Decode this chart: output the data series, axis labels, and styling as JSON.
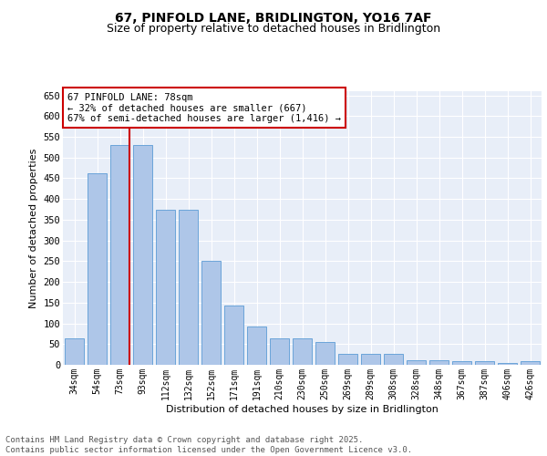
{
  "title_line1": "67, PINFOLD LANE, BRIDLINGTON, YO16 7AF",
  "title_line2": "Size of property relative to detached houses in Bridlington",
  "xlabel": "Distribution of detached houses by size in Bridlington",
  "ylabel": "Number of detached properties",
  "categories": [
    "34sqm",
    "54sqm",
    "73sqm",
    "93sqm",
    "112sqm",
    "132sqm",
    "152sqm",
    "171sqm",
    "191sqm",
    "210sqm",
    "230sqm",
    "250sqm",
    "269sqm",
    "289sqm",
    "308sqm",
    "328sqm",
    "348sqm",
    "367sqm",
    "387sqm",
    "406sqm",
    "426sqm"
  ],
  "values": [
    63,
    463,
    530,
    530,
    375,
    375,
    250,
    143,
    93,
    63,
    63,
    55,
    27,
    27,
    27,
    11,
    11,
    8,
    8,
    5,
    8
  ],
  "bar_color": "#aec6e8",
  "bar_edge_color": "#5b9bd5",
  "annotation_text_line1": "67 PINFOLD LANE: 78sqm",
  "annotation_text_line2": "← 32% of detached houses are smaller (667)",
  "annotation_text_line3": "67% of semi-detached houses are larger (1,416) →",
  "annotation_box_color": "#ffffff",
  "annotation_box_edge_color": "#cc0000",
  "line_color": "#cc0000",
  "property_bar_index": 2,
  "ylim": [
    0,
    660
  ],
  "yticks": [
    0,
    50,
    100,
    150,
    200,
    250,
    300,
    350,
    400,
    450,
    500,
    550,
    600,
    650
  ],
  "footer_line1": "Contains HM Land Registry data © Crown copyright and database right 2025.",
  "footer_line2": "Contains public sector information licensed under the Open Government Licence v3.0.",
  "bg_color": "#e8eef8",
  "grid_color": "#ffffff",
  "title_fontsize": 10,
  "subtitle_fontsize": 9,
  "tick_fontsize": 7,
  "label_fontsize": 8,
  "footer_fontsize": 6.5,
  "annotation_fontsize": 7.5
}
